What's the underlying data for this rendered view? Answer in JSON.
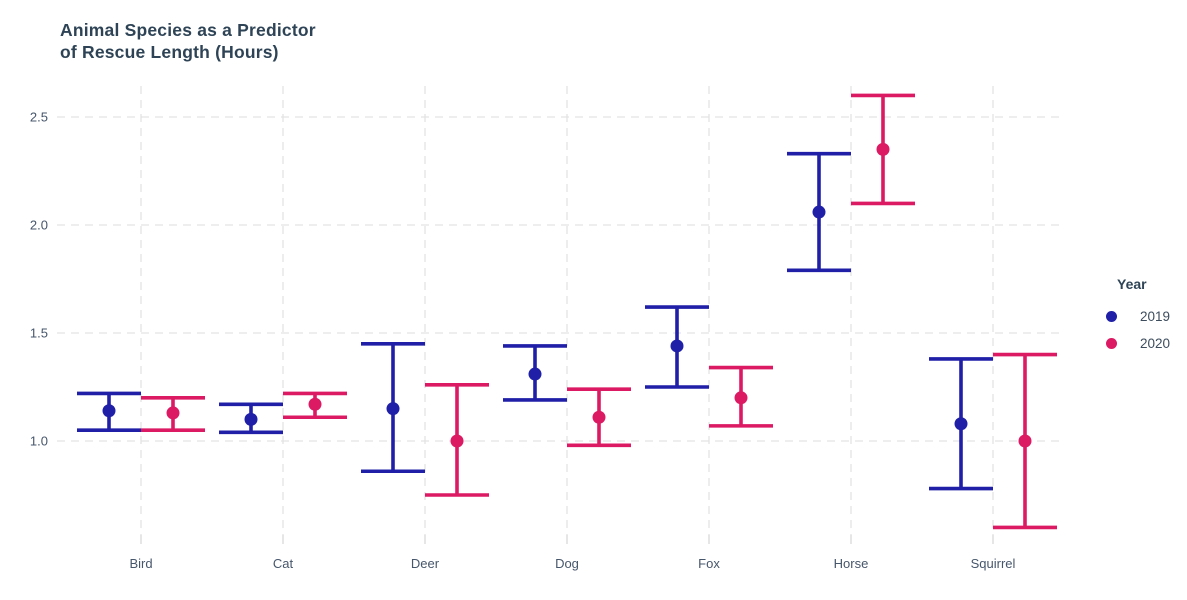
{
  "title": {
    "lines": [
      "Animal Species as a Predictor",
      "of Rescue Length (Hours)"
    ]
  },
  "legend": {
    "title": "Year"
  },
  "chart_data": {
    "type": "scatter",
    "style": "dodged point-range / error bars (mean with interval), grouped by category",
    "title": "Animal Species as a Predictor of Rescue Length (Hours)",
    "xlabel": "",
    "ylabel": "",
    "categories": [
      "Bird",
      "Cat",
      "Deer",
      "Dog",
      "Fox",
      "Horse",
      "Squirrel"
    ],
    "series": [
      {
        "name": "2019",
        "color": "#1F1FA8",
        "means": [
          1.14,
          1.1,
          1.15,
          1.31,
          1.44,
          2.06,
          1.08
        ],
        "ci_low": [
          1.05,
          1.04,
          0.86,
          1.19,
          1.25,
          1.79,
          0.78
        ],
        "ci_high": [
          1.22,
          1.17,
          1.45,
          1.44,
          1.62,
          2.33,
          1.38
        ]
      },
      {
        "name": "2020",
        "color": "#DC1A64",
        "means": [
          1.13,
          1.17,
          1.0,
          1.11,
          1.2,
          2.35,
          1.0
        ],
        "ci_low": [
          1.05,
          1.11,
          0.75,
          0.98,
          1.07,
          2.1,
          0.6
        ],
        "ci_high": [
          1.2,
          1.22,
          1.26,
          1.24,
          1.34,
          2.6,
          1.4
        ]
      }
    ],
    "yticks": [
      "1.0",
      "1.5",
      "2.0",
      "2.5"
    ],
    "ytick_values": [
      1.0,
      1.5,
      2.0,
      2.5
    ],
    "ylim": [
      0.53,
      2.64
    ],
    "legend_title": "Year",
    "legend_position": "right",
    "grid": {
      "horizontal": true,
      "vertical": true,
      "line_style": "dashed",
      "color": "#E3E3E3"
    }
  },
  "colors": {
    "title_text": "#2E4456",
    "axis_text": "#46566B",
    "grid": "#E3E3E3",
    "tick": "#D9D9D9",
    "background": "#FFFFFF"
  }
}
